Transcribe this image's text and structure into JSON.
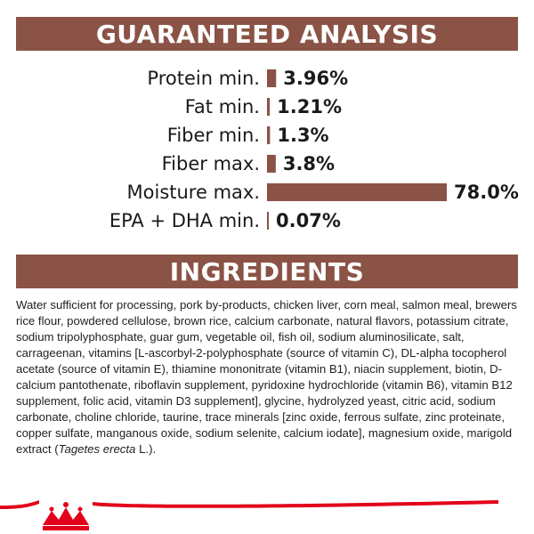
{
  "colors": {
    "banner": "#8a5346",
    "bar": "#8a5346",
    "brand_red": "#e2001a"
  },
  "banners": {
    "guaranteed_analysis": "GUARANTEED ANALYSIS",
    "ingredients": "INGREDIENTS"
  },
  "chart_data": {
    "type": "bar",
    "orientation": "horizontal",
    "categories": [
      "Protein min.",
      "Fat min.",
      "Fiber min.",
      "Fiber max.",
      "Moisture max.",
      "EPA + DHA min."
    ],
    "values": [
      3.96,
      1.21,
      1.3,
      3.8,
      78.0,
      0.07
    ],
    "value_labels": [
      "3.96%",
      "1.21%",
      "1.3%",
      "3.8%",
      "78.0%",
      "0.07%"
    ],
    "unit": "%",
    "xlim": [
      0,
      78.0
    ],
    "grid": false,
    "legend": "none"
  },
  "ingredients": {
    "main_text": "Water sufficient for processing, pork by-products, chicken liver, corn meal, salmon meal, brewers rice flour, powdered cellulose, brown rice, calcium carbonate, natural flavors, potassium citrate, sodium tripolyphosphate, guar gum, vegetable oil, fish oil, sodium aluminosilicate, salt, carrageenan, vitamins [L-ascorbyl-2-polyphosphate (source of vitamin C), DL-alpha tocopherol acetate (source of vitamin E), thiamine mononitrate (vitamin B1), niacin supplement, biotin, D-calcium pantothenate, riboflavin supplement, pyridoxine hydrochloride (vitamin B6), vitamin B12 supplement, folic acid, vitamin D3 supplement], glycine, hydrolyzed yeast, citric acid, sodium carbonate, choline chloride, taurine, trace minerals [zinc oxide, ferrous sulfate, zinc proteinate, copper sulfate, manganous oxide, sodium selenite, calcium iodate], magnesium oxide, marigold extract (",
    "italic_text": "Tagetes erecta",
    "end_text": " L.)."
  },
  "footer": {
    "logo": "crown-logo-icon"
  }
}
